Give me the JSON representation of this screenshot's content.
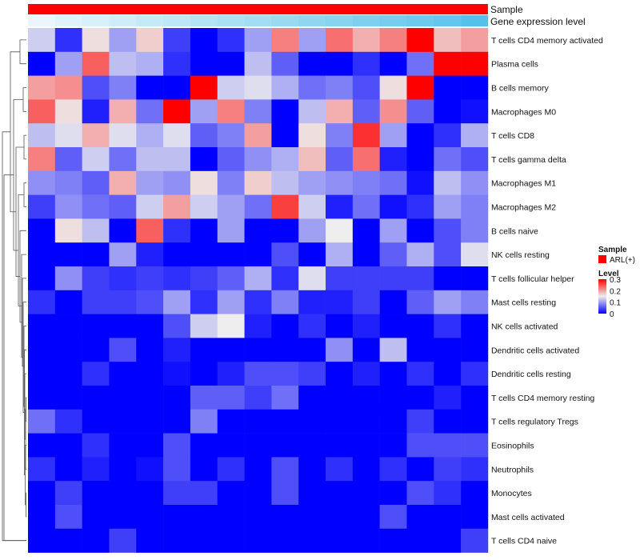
{
  "chart_data": {
    "type": "heatmap",
    "column_annotations": [
      {
        "name": "Sample",
        "kind": "Sample"
      },
      {
        "name": "Gene expression level",
        "kind": "Gene expression level"
      }
    ],
    "rows": [
      "T cells CD4 memory activated",
      "Plasma cells",
      "B cells memory",
      "Macrophages M0",
      "T cells CD8",
      "T cells gamma delta",
      "Macrophages M1",
      "Macrophages M2",
      "B cells naive",
      "NK cells resting",
      "T cells follicular helper",
      "Mast cells resting",
      "NK cells activated",
      "Dendritic cells activated",
      "Dendritic cells resting",
      "T cells CD4 memory resting",
      "T cells regulatory  Tregs",
      "Eosinophils",
      "Neutrophils",
      "Monocytes",
      "Mast cells activated",
      "T cells CD4 naive"
    ],
    "values": [
      [
        0.13,
        0.03,
        0.16,
        0.1,
        0.17,
        0.04,
        0.0,
        0.03,
        0.1,
        0.22,
        0.1,
        0.23,
        0.19,
        0.22,
        0.3,
        0.18,
        0.2
      ],
      [
        0.0,
        0.1,
        0.24,
        0.12,
        0.11,
        0.03,
        0.0,
        0.0,
        0.12,
        0.06,
        0.0,
        0.0,
        0.03,
        0.0,
        0.07,
        0.3,
        0.3
      ],
      [
        0.2,
        0.21,
        0.05,
        0.08,
        0.0,
        0.0,
        0.3,
        0.13,
        0.14,
        0.11,
        0.07,
        0.08,
        0.05,
        0.16,
        0.3,
        0.0,
        0.0
      ],
      [
        0.24,
        0.16,
        0.02,
        0.19,
        0.07,
        0.3,
        0.1,
        0.22,
        0.08,
        0.0,
        0.12,
        0.19,
        0.06,
        0.21,
        0.06,
        0.0,
        0.01
      ],
      [
        0.12,
        0.14,
        0.19,
        0.14,
        0.11,
        0.14,
        0.06,
        0.08,
        0.2,
        0.0,
        0.16,
        0.08,
        0.27,
        0.1,
        0.0,
        0.03,
        0.11
      ],
      [
        0.22,
        0.06,
        0.13,
        0.07,
        0.12,
        0.12,
        0.0,
        0.06,
        0.09,
        0.11,
        0.18,
        0.06,
        0.23,
        0.02,
        0.0,
        0.07,
        0.05
      ],
      [
        0.09,
        0.08,
        0.06,
        0.19,
        0.1,
        0.09,
        0.16,
        0.08,
        0.17,
        0.12,
        0.1,
        0.09,
        0.08,
        0.07,
        0.01,
        0.12,
        0.09
      ],
      [
        0.04,
        0.09,
        0.07,
        0.06,
        0.13,
        0.2,
        0.13,
        0.1,
        0.07,
        0.26,
        0.13,
        0.02,
        0.07,
        0.01,
        0.03,
        0.1,
        0.08
      ],
      [
        0.0,
        0.16,
        0.12,
        0.0,
        0.24,
        0.03,
        0.0,
        0.1,
        0.0,
        0.0,
        0.1,
        0.15,
        0.0,
        0.1,
        0.0,
        0.05,
        0.08
      ],
      [
        0.0,
        0.0,
        0.0,
        0.1,
        0.02,
        0.0,
        0.0,
        0.0,
        0.0,
        0.05,
        0.0,
        0.11,
        0.0,
        0.06,
        0.11,
        0.05,
        0.14
      ],
      [
        0.0,
        0.09,
        0.04,
        0.03,
        0.04,
        0.03,
        0.04,
        0.06,
        0.11,
        0.03,
        0.14,
        0.04,
        0.04,
        0.04,
        0.04,
        0.0,
        0.0
      ],
      [
        0.03,
        0.0,
        0.04,
        0.04,
        0.05,
        0.1,
        0.03,
        0.1,
        0.03,
        0.08,
        0.02,
        0.02,
        0.04,
        0.0,
        0.06,
        0.1,
        0.08
      ],
      [
        0.0,
        0.0,
        0.0,
        0.0,
        0.0,
        0.05,
        0.13,
        0.15,
        0.02,
        0.0,
        0.03,
        0.0,
        0.02,
        0.0,
        0.0,
        0.03,
        0.0
      ],
      [
        0.0,
        0.0,
        0.0,
        0.05,
        0.0,
        0.02,
        0.0,
        0.0,
        0.0,
        0.0,
        0.0,
        0.09,
        0.0,
        0.12,
        0.0,
        0.0,
        0.0
      ],
      [
        0.0,
        0.0,
        0.03,
        0.0,
        0.0,
        0.01,
        0.0,
        0.02,
        0.05,
        0.05,
        0.04,
        0.0,
        0.02,
        0.0,
        0.03,
        0.0,
        0.03
      ],
      [
        0.0,
        0.0,
        0.0,
        0.0,
        0.0,
        0.0,
        0.06,
        0.06,
        0.04,
        0.07,
        0.0,
        0.0,
        0.0,
        0.0,
        0.0,
        0.02,
        0.0
      ],
      [
        0.07,
        0.03,
        0.0,
        0.0,
        0.0,
        0.0,
        0.08,
        0.0,
        0.0,
        0.0,
        0.0,
        0.0,
        0.0,
        0.0,
        0.04,
        0.0,
        0.0
      ],
      [
        0.0,
        0.0,
        0.03,
        0.0,
        0.0,
        0.05,
        0.0,
        0.0,
        0.0,
        0.0,
        0.0,
        0.0,
        0.0,
        0.0,
        0.05,
        0.05,
        0.05
      ],
      [
        0.03,
        0.0,
        0.02,
        0.0,
        0.01,
        0.05,
        0.0,
        0.03,
        0.0,
        0.05,
        0.0,
        0.03,
        0.0,
        0.03,
        0.0,
        0.04,
        0.03
      ],
      [
        0.0,
        0.04,
        0.0,
        0.0,
        0.0,
        0.04,
        0.04,
        0.0,
        0.0,
        0.05,
        0.0,
        0.0,
        0.0,
        0.0,
        0.05,
        0.03,
        0.0
      ],
      [
        0.0,
        0.05,
        0.0,
        0.0,
        0.0,
        0.0,
        0.0,
        0.0,
        0.0,
        0.0,
        0.0,
        0.0,
        0.0,
        0.05,
        0.0,
        0.0,
        0.0
      ],
      [
        0.0,
        0.0,
        0.0,
        0.04,
        0.0,
        0.0,
        0.0,
        0.0,
        0.0,
        0.0,
        0.0,
        0.0,
        0.0,
        0.0,
        0.0,
        0.0,
        0.04
      ]
    ],
    "column_gene_expression_level": [
      0.0,
      0.06,
      0.12,
      0.18,
      0.24,
      0.3,
      0.36,
      0.42,
      0.48,
      0.54,
      0.6,
      0.66,
      0.72,
      0.78,
      0.84,
      0.9,
      1.0
    ],
    "colors": {
      "low": "#0000ff",
      "mid": "#eeeeee",
      "high": "#ff0000",
      "sample": "#ff0000",
      "gene_low": "#eaf6fb",
      "gene_high": "#55c1eb",
      "dendrogram": "#555555"
    },
    "legend": {
      "sample_title": "Sample",
      "sample_entry": "ARL(+)",
      "level_title": "Level",
      "ticks": [
        "0.3",
        "0.2",
        "0.1",
        "0"
      ],
      "range": [
        0,
        0.3
      ]
    },
    "row_dendrogram": [
      [
        0,
        1,
        0.92
      ],
      [
        2,
        3,
        0.96
      ],
      [
        4,
        5,
        0.97
      ],
      [
        6,
        7,
        0.97
      ],
      [
        15,
        16,
        0.995
      ],
      [
        19,
        20,
        0.995
      ],
      [
        18,
        26,
        0.99
      ],
      [
        17,
        27,
        0.985
      ],
      [
        14,
        28,
        0.98
      ],
      [
        13,
        29,
        0.975
      ],
      [
        12,
        30,
        0.97
      ],
      [
        11,
        31,
        0.96
      ],
      [
        10,
        32,
        0.95
      ],
      [
        9,
        33,
        0.94
      ],
      [
        8,
        34,
        0.92
      ],
      [
        25,
        35,
        0.9
      ],
      [
        24,
        36,
        0.87
      ],
      [
        23,
        37,
        0.84
      ],
      [
        22,
        38,
        0.8
      ],
      [
        21,
        39,
        0.72
      ],
      [
        40,
        21,
        0.7
      ]
    ]
  }
}
